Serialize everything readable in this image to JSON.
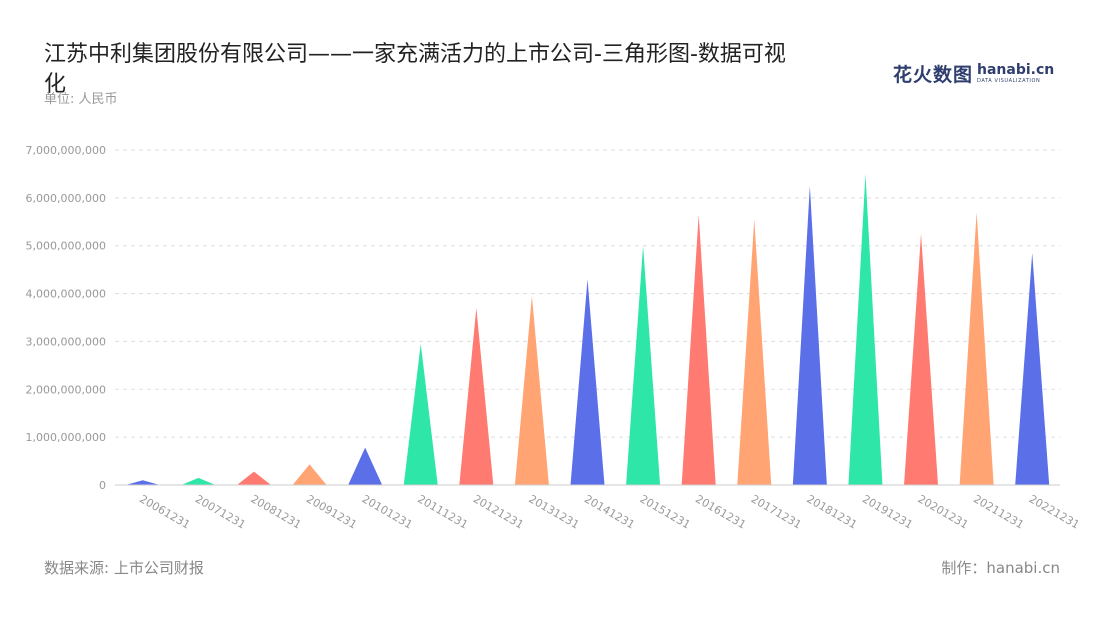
{
  "header": {
    "title": "江苏中利集团股份有限公司——一家充满活力的上市公司-三角形图-数据可视化",
    "unit": "单位: 人民币"
  },
  "logo": {
    "cn": "花火数图",
    "en": "hanabi.cn",
    "en_sub": "DATA VISUALIZATION"
  },
  "footer": {
    "source": "数据来源: 上市公司财报",
    "maker": "制作：hanabi.cn"
  },
  "colors": {
    "palette": [
      "#5b6fe8",
      "#2ee6a8",
      "#ff7a70",
      "#ffa472"
    ],
    "grid": "#dddddd",
    "axis": "#cccccc"
  },
  "chart_data": {
    "type": "bar",
    "subtype": "triangle",
    "categories": [
      "20061231",
      "20071231",
      "20081231",
      "20091231",
      "20101231",
      "20111231",
      "20121231",
      "20131231",
      "20141231",
      "20151231",
      "20161231",
      "20171231",
      "20181231",
      "20191231",
      "20201231",
      "20211231",
      "20221231"
    ],
    "values": [
      100000000,
      150000000,
      280000000,
      430000000,
      780000000,
      2950000000,
      3700000000,
      3950000000,
      4300000000,
      5000000000,
      5650000000,
      5550000000,
      6250000000,
      6500000000,
      5250000000,
      5700000000,
      4850000000
    ],
    "yticks": [
      "0",
      "1,000,000,000",
      "2,000,000,000",
      "3,000,000,000",
      "4,000,000,000",
      "5,000,000,000",
      "6,000,000,000",
      "7,000,000,000"
    ],
    "ylim": [
      0,
      7000000000
    ],
    "grid": true,
    "legend": "none"
  }
}
